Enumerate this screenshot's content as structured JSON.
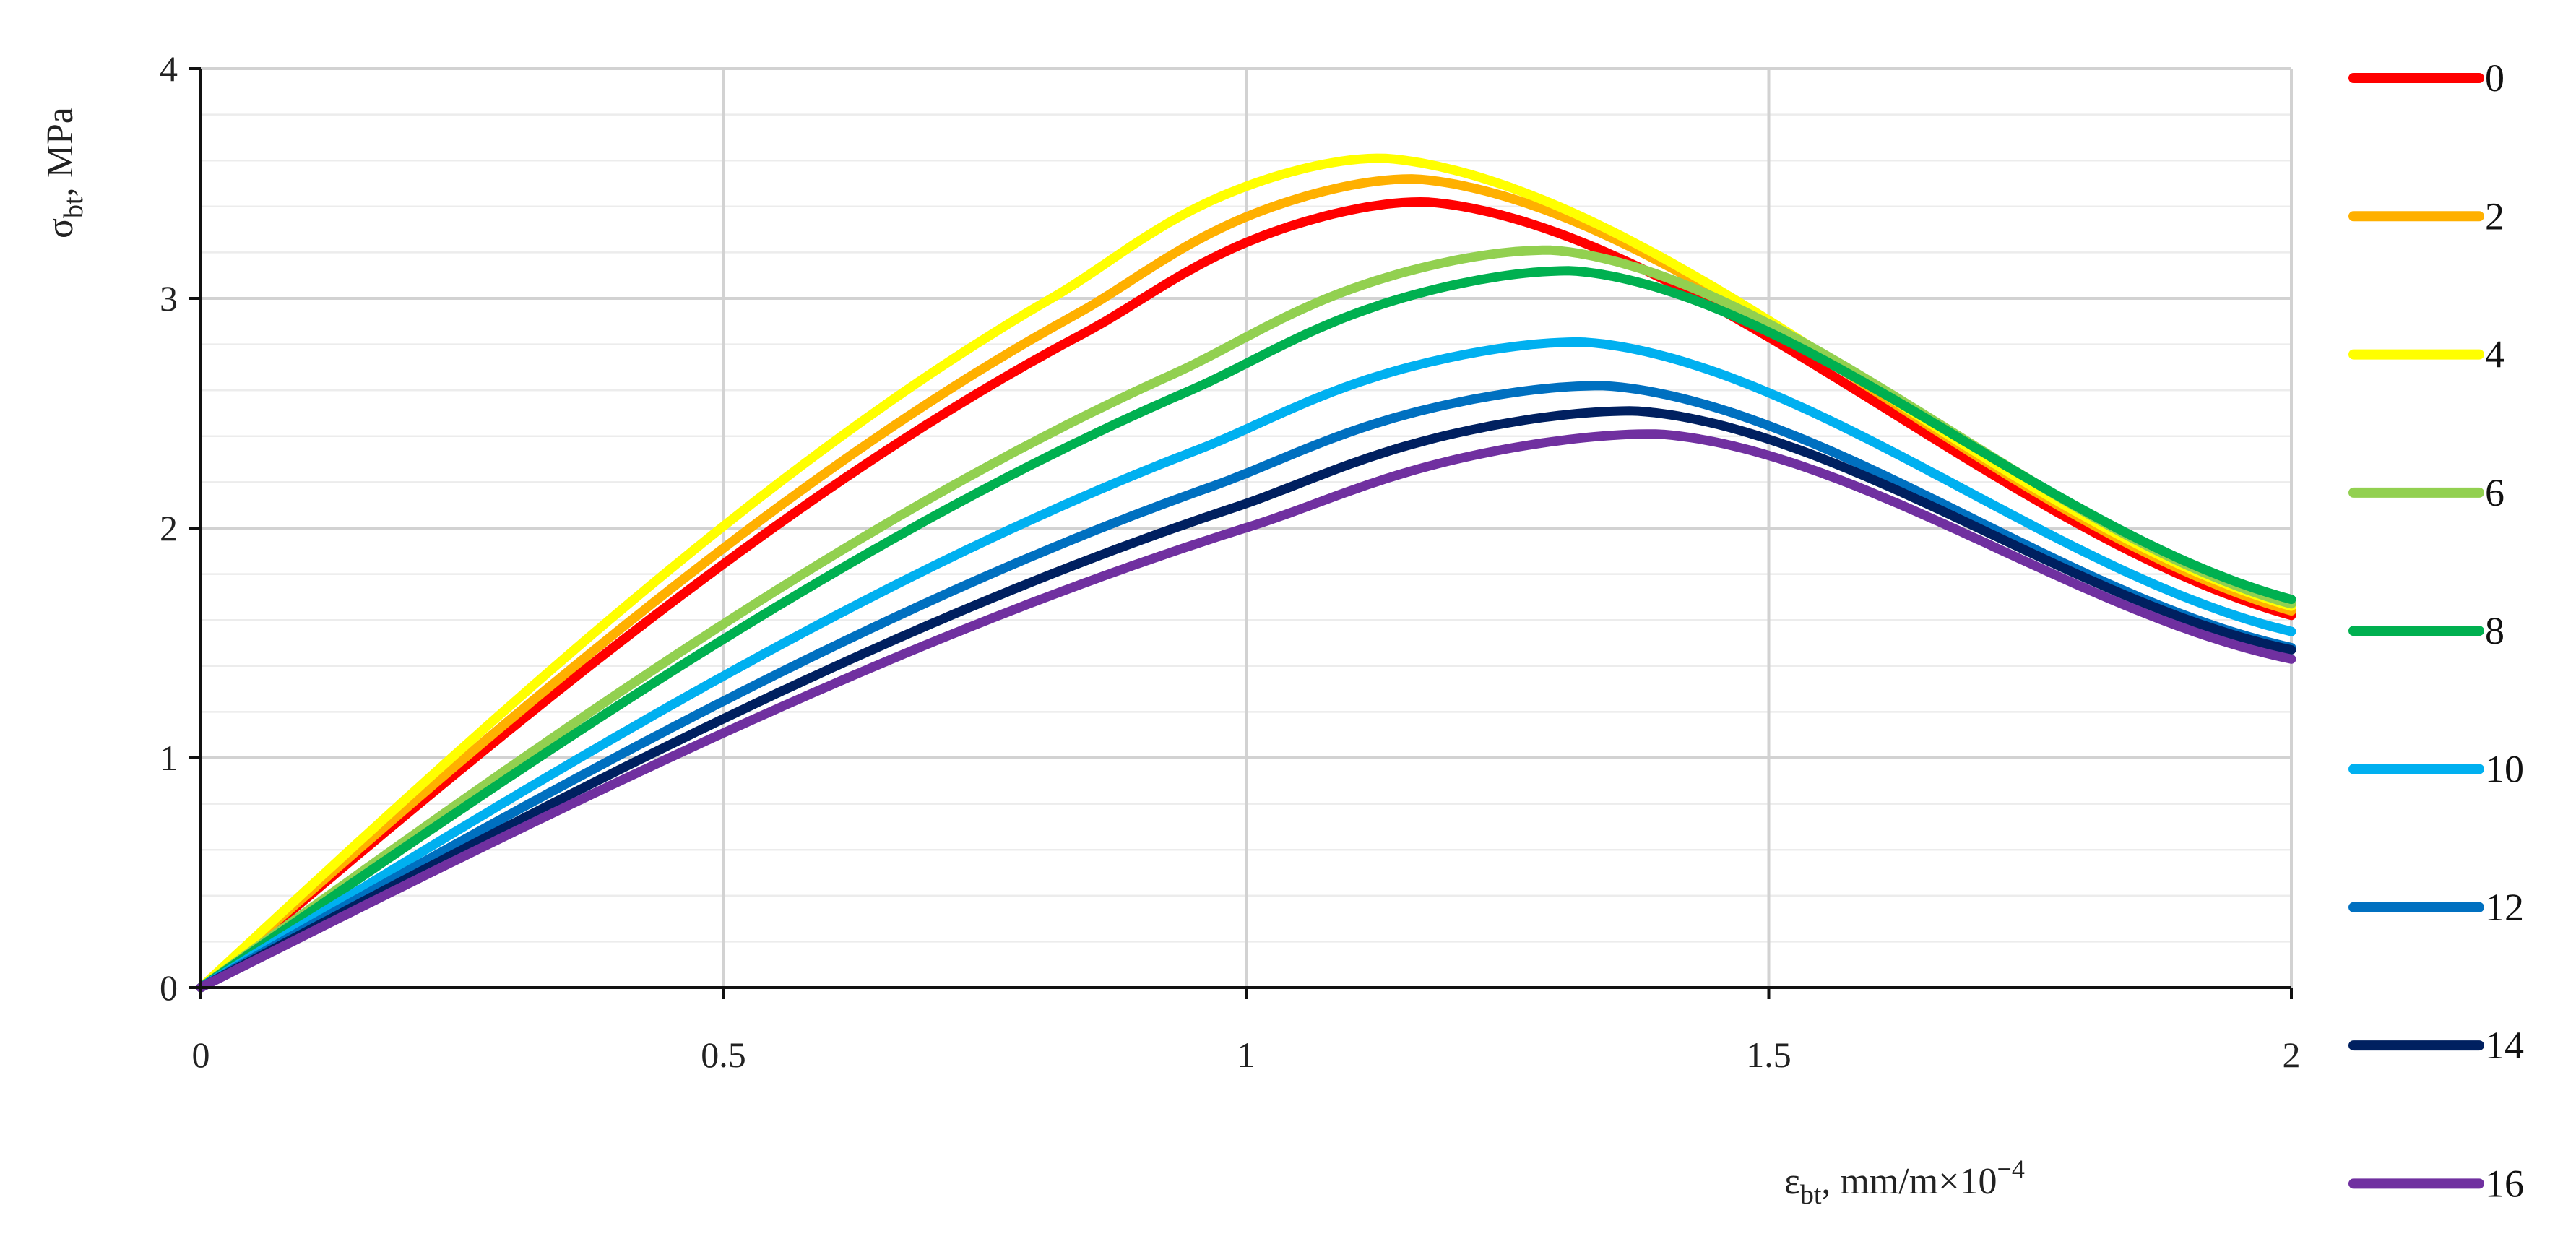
{
  "chart_data": {
    "type": "line",
    "title": "",
    "xlabel": "ε_bt, mm/m×10⁻⁴",
    "ylabel": "σ_bt, MPa",
    "xlabel_parts": {
      "symbol": "ε",
      "sub": "bt",
      "rest": ", mm/m×10",
      "sup": "−4"
    },
    "ylabel_parts": {
      "symbol": "σ",
      "sub": "bt",
      "rest": ", MPa"
    },
    "xlim": [
      0,
      2
    ],
    "ylim": [
      0,
      4
    ],
    "x_ticks": [
      "0",
      "0.5",
      "1",
      "1.5",
      "2"
    ],
    "y_ticks": [
      "0",
      "1",
      "2",
      "3",
      "4"
    ],
    "grid": true,
    "legend_position": "right",
    "series": [
      {
        "name": "0",
        "color": "#ff0000",
        "peak": [
          1.17,
          3.42
        ],
        "end": 1.62
      },
      {
        "name": "2",
        "color": "#ffb000",
        "peak": [
          1.16,
          3.52
        ],
        "end": 1.64
      },
      {
        "name": "4",
        "color": "#ffff00",
        "peak": [
          1.13,
          3.61
        ],
        "end": 1.66
      },
      {
        "name": "6",
        "color": "#92d050",
        "peak": [
          1.29,
          3.21
        ],
        "end": 1.67
      },
      {
        "name": "8",
        "color": "#00b050",
        "peak": [
          1.31,
          3.12
        ],
        "end": 1.69
      },
      {
        "name": "10",
        "color": "#00b0f0",
        "peak": [
          1.32,
          2.81
        ],
        "end": 1.55
      },
      {
        "name": "12",
        "color": "#0070c0",
        "peak": [
          1.34,
          2.62
        ],
        "end": 1.48
      },
      {
        "name": "14",
        "color": "#002060",
        "peak": [
          1.37,
          2.51
        ],
        "end": 1.47
      },
      {
        "name": "16",
        "color": "#7030a0",
        "peak": [
          1.39,
          2.41
        ],
        "end": 1.43
      }
    ]
  }
}
